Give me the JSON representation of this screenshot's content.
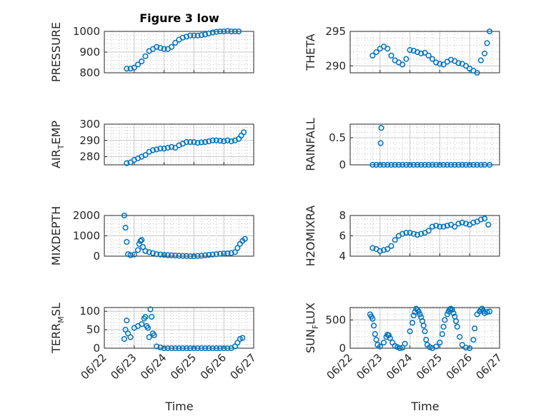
{
  "figure": {
    "title": "Figure 3 low",
    "xlabel": "Time"
  },
  "chart_data": [
    {
      "type": "scatter",
      "panel": "pressure",
      "ylabel": "PRESSURE",
      "xlim": [
        "06/22",
        "06/27"
      ],
      "ylim": [
        800,
        1000
      ],
      "yticks": [
        800,
        900,
        1000
      ],
      "marker_color": "#0072BD",
      "x": [
        "06/22 18:00",
        "06/22 21:00",
        "06/23 00:00",
        "06/23 03:00",
        "06/23 06:00",
        "06/23 09:00",
        "06/23 12:00",
        "06/23 15:00",
        "06/23 18:00",
        "06/23 21:00",
        "06/24 00:00",
        "06/24 03:00",
        "06/24 06:00",
        "06/24 09:00",
        "06/24 12:00",
        "06/24 15:00",
        "06/24 18:00",
        "06/24 21:00",
        "06/25 00:00",
        "06/25 03:00",
        "06/25 06:00",
        "06/25 09:00",
        "06/25 12:00",
        "06/25 15:00",
        "06/25 18:00",
        "06/25 21:00",
        "06/26 00:00",
        "06/26 03:00",
        "06/26 06:00",
        "06/26 09:00",
        "06/26 12:00"
      ],
      "y": [
        820,
        820,
        825,
        840,
        855,
        880,
        905,
        915,
        925,
        920,
        915,
        915,
        925,
        945,
        960,
        970,
        975,
        980,
        980,
        980,
        982,
        985,
        990,
        995,
        998,
        1000,
        1000,
        1002,
        1000,
        1000,
        1000
      ]
    },
    {
      "type": "scatter",
      "panel": "theta",
      "ylabel": "THETA",
      "xlim": [
        "06/22",
        "06/27"
      ],
      "ylim": [
        289,
        295
      ],
      "yticks": [
        290,
        295
      ],
      "marker_color": "#0072BD",
      "x": [
        "06/22 18:00",
        "06/22 21:00",
        "06/23 00:00",
        "06/23 03:00",
        "06/23 06:00",
        "06/23 09:00",
        "06/23 12:00",
        "06/23 15:00",
        "06/23 18:00",
        "06/23 21:00",
        "06/24 00:00",
        "06/24 03:00",
        "06/24 06:00",
        "06/24 09:00",
        "06/24 12:00",
        "06/24 15:00",
        "06/24 18:00",
        "06/24 21:00",
        "06/25 00:00",
        "06/25 03:00",
        "06/25 06:00",
        "06/25 09:00",
        "06/25 12:00",
        "06/25 15:00",
        "06/25 18:00",
        "06/25 21:00",
        "06/26 00:00",
        "06/26 03:00",
        "06/26 06:00",
        "06/26 09:00",
        "06/26 12:00",
        "06/26 14:00",
        "06/26 16:00"
      ],
      "y": [
        291.5,
        292.0,
        292.5,
        292.8,
        292.5,
        291.5,
        290.8,
        290.5,
        290.2,
        291.0,
        292.3,
        292.2,
        292.0,
        291.8,
        291.9,
        291.5,
        291.0,
        290.5,
        290.3,
        290.2,
        290.6,
        290.9,
        290.7,
        290.4,
        290.3,
        290.0,
        289.6,
        289.3,
        289.0,
        290.8,
        291.8,
        293.3,
        295.0
      ]
    },
    {
      "type": "scatter",
      "panel": "air_temp",
      "ylabel": "AIR_TEMP",
      "ylabel_display": {
        "base": "AIR",
        "sub": "T",
        "rest": "EMP"
      },
      "xlim": [
        "06/22",
        "06/27"
      ],
      "ylim": [
        275,
        300
      ],
      "yticks": [
        280,
        290,
        300
      ],
      "marker_color": "#0072BD",
      "x": [
        "06/22 18:00",
        "06/22 21:00",
        "06/23 00:00",
        "06/23 03:00",
        "06/23 06:00",
        "06/23 09:00",
        "06/23 12:00",
        "06/23 15:00",
        "06/23 18:00",
        "06/23 21:00",
        "06/24 00:00",
        "06/24 03:00",
        "06/24 06:00",
        "06/24 09:00",
        "06/24 12:00",
        "06/24 15:00",
        "06/24 18:00",
        "06/24 21:00",
        "06/25 00:00",
        "06/25 03:00",
        "06/25 06:00",
        "06/25 09:00",
        "06/25 12:00",
        "06/25 15:00",
        "06/25 18:00",
        "06/25 21:00",
        "06/26 00:00",
        "06/26 03:00",
        "06/26 06:00",
        "06/26 09:00",
        "06/26 12:00",
        "06/26 14:00",
        "06/26 16:00"
      ],
      "y": [
        276,
        276.5,
        278,
        279,
        280,
        281,
        283,
        284,
        284.5,
        285,
        285,
        285.5,
        286,
        285.5,
        287,
        288,
        289,
        289,
        289,
        288.5,
        288.8,
        289,
        289.5,
        290,
        290,
        289.8,
        289.5,
        290,
        289.5,
        290,
        291,
        293,
        295
      ]
    },
    {
      "type": "scatter",
      "panel": "rainfall",
      "ylabel": "RAINFALL",
      "xlim": [
        "06/22",
        "06/27"
      ],
      "ylim": [
        0,
        0.75
      ],
      "yticks": [
        0,
        0.5
      ],
      "ytick_labels": [
        "0",
        "0.5"
      ],
      "marker_color": "#0072BD",
      "x": [
        "06/22 18:00",
        "06/22 21:00",
        "06/23 00:00",
        "06/23 00:30",
        "06/23 01:00",
        "06/23 03:00",
        "06/23 06:00",
        "06/23 09:00",
        "06/23 12:00",
        "06/23 15:00",
        "06/23 18:00",
        "06/23 21:00",
        "06/24 00:00",
        "06/24 03:00",
        "06/24 06:00",
        "06/24 09:00",
        "06/24 12:00",
        "06/24 15:00",
        "06/24 18:00",
        "06/24 21:00",
        "06/25 00:00",
        "06/25 03:00",
        "06/25 06:00",
        "06/25 09:00",
        "06/25 12:00",
        "06/25 15:00",
        "06/25 18:00",
        "06/25 21:00",
        "06/26 00:00",
        "06/26 03:00",
        "06/26 06:00",
        "06/26 09:00",
        "06/26 12:00",
        "06/26 16:00"
      ],
      "y": [
        0,
        0,
        0,
        0.4,
        0.68,
        0,
        0,
        0,
        0,
        0,
        0,
        0,
        0,
        0,
        0,
        0,
        0,
        0,
        0,
        0,
        0,
        0,
        0,
        0,
        0,
        0,
        0,
        0,
        0,
        0,
        0,
        0,
        0,
        0
      ]
    },
    {
      "type": "scatter",
      "panel": "mixdepth",
      "ylabel": "MIXDEPTH",
      "xlim": [
        "06/22",
        "06/27"
      ],
      "ylim": [
        0,
        2000
      ],
      "yticks": [
        0,
        1000,
        2000
      ],
      "marker_color": "#0072BD",
      "x": [
        "06/22 16:00",
        "06/22 17:00",
        "06/22 18:00",
        "06/22 19:00",
        "06/22 21:00",
        "06/23 00:00",
        "06/23 03:00",
        "06/23 04:00",
        "06/23 05:00",
        "06/23 06:00",
        "06/23 07:00",
        "06/23 09:00",
        "06/23 12:00",
        "06/23 15:00",
        "06/23 18:00",
        "06/23 21:00",
        "06/24 00:00",
        "06/24 03:00",
        "06/24 06:00",
        "06/24 09:00",
        "06/24 12:00",
        "06/24 15:00",
        "06/24 18:00",
        "06/24 21:00",
        "06/25 00:00",
        "06/25 03:00",
        "06/25 06:00",
        "06/25 09:00",
        "06/25 12:00",
        "06/25 15:00",
        "06/25 18:00",
        "06/25 21:00",
        "06/26 00:00",
        "06/26 03:00",
        "06/26 06:00",
        "06/26 09:00",
        "06/26 11:00",
        "06/26 13:00",
        "06/26 15:00",
        "06/26 17:00"
      ],
      "y": [
        2000,
        1400,
        700,
        100,
        50,
        80,
        300,
        600,
        750,
        800,
        450,
        250,
        200,
        150,
        100,
        80,
        60,
        50,
        40,
        30,
        20,
        10,
        5,
        0,
        0,
        10,
        20,
        40,
        60,
        80,
        100,
        120,
        130,
        140,
        150,
        200,
        400,
        600,
        750,
        850
      ]
    },
    {
      "type": "scatter",
      "panel": "h2omixra",
      "ylabel": "H2OMIXRA",
      "xlim": [
        "06/22",
        "06/27"
      ],
      "ylim": [
        4,
        8
      ],
      "yticks": [
        4,
        6,
        8
      ],
      "marker_color": "#0072BD",
      "x": [
        "06/22 18:00",
        "06/22 21:00",
        "06/23 00:00",
        "06/23 03:00",
        "06/23 06:00",
        "06/23 09:00",
        "06/23 12:00",
        "06/23 15:00",
        "06/23 18:00",
        "06/23 21:00",
        "06/24 00:00",
        "06/24 03:00",
        "06/24 06:00",
        "06/24 09:00",
        "06/24 12:00",
        "06/24 15:00",
        "06/24 18:00",
        "06/24 21:00",
        "06/25 00:00",
        "06/25 03:00",
        "06/25 06:00",
        "06/25 09:00",
        "06/25 12:00",
        "06/25 15:00",
        "06/25 18:00",
        "06/25 21:00",
        "06/26 00:00",
        "06/26 03:00",
        "06/26 06:00",
        "06/26 09:00",
        "06/26 12:00",
        "06/26 15:00"
      ],
      "y": [
        4.8,
        4.7,
        4.5,
        4.6,
        4.7,
        5.0,
        5.6,
        6.0,
        6.2,
        6.3,
        6.3,
        6.2,
        6.1,
        6.2,
        6.3,
        6.5,
        6.9,
        7.0,
        6.9,
        6.9,
        7.0,
        7.1,
        6.9,
        7.2,
        7.3,
        7.2,
        7.1,
        7.3,
        7.4,
        7.6,
        7.7,
        7.1
      ]
    },
    {
      "type": "scatter",
      "panel": "terr_msl",
      "ylabel": "TERR_MSL",
      "ylabel_display": {
        "base": "TERR",
        "sub": "M",
        "rest": "SL"
      },
      "xlim": [
        "06/22",
        "06/27"
      ],
      "ylim": [
        0,
        110
      ],
      "yticks": [
        0,
        50,
        100
      ],
      "marker_color": "#0072BD",
      "x": [
        "06/22 16:00",
        "06/22 17:00",
        "06/22 18:00",
        "06/22 19:00",
        "06/22 21:00",
        "06/23 00:00",
        "06/23 03:00",
        "06/23 06:00",
        "06/23 08:00",
        "06/23 09:00",
        "06/23 10:00",
        "06/23 11:00",
        "06/23 12:00",
        "06/23 13:00",
        "06/23 14:00",
        "06/23 15:00",
        "06/23 16:00",
        "06/23 18:00",
        "06/23 21:00",
        "06/24 00:00",
        "06/24 03:00",
        "06/24 06:00",
        "06/24 09:00",
        "06/24 12:00",
        "06/24 15:00",
        "06/24 18:00",
        "06/24 21:00",
        "06/25 00:00",
        "06/25 03:00",
        "06/25 06:00",
        "06/25 09:00",
        "06/25 12:00",
        "06/25 15:00",
        "06/25 18:00",
        "06/25 21:00",
        "06/26 00:00",
        "06/26 03:00",
        "06/26 06:00",
        "06/26 09:00",
        "06/26 11:00",
        "06/26 13:00",
        "06/26 15:00"
      ],
      "y": [
        25,
        50,
        75,
        40,
        30,
        55,
        60,
        65,
        80,
        85,
        60,
        55,
        30,
        105,
        85,
        40,
        35,
        5,
        2,
        0,
        0,
        0,
        0,
        0,
        0,
        0,
        0,
        0,
        0,
        0,
        0,
        0,
        0,
        0,
        0,
        0,
        0,
        0,
        5,
        15,
        25,
        28
      ]
    },
    {
      "type": "scatter",
      "panel": "sun_flux",
      "ylabel": "SUN_FLUX",
      "ylabel_display": {
        "base": "SUN",
        "sub": "F",
        "rest": "LUX"
      },
      "xlim": [
        "06/22",
        "06/27"
      ],
      "ylim": [
        0,
        720
      ],
      "yticks": [
        0,
        500
      ],
      "marker_color": "#0072BD",
      "x": [
        "06/22 16:00",
        "06/22 17:00",
        "06/22 18:00",
        "06/22 19:00",
        "06/22 20:00",
        "06/22 21:00",
        "06/22 22:00",
        "06/23 00:00",
        "06/23 03:00",
        "06/23 05:00",
        "06/23 06:00",
        "06/23 07:00",
        "06/23 08:00",
        "06/23 10:00",
        "06/23 12:00",
        "06/23 14:00",
        "06/23 16:00",
        "06/23 18:00",
        "06/23 20:00",
        "06/24 00:00",
        "06/24 02:00",
        "06/24 03:00",
        "06/24 04:00",
        "06/24 05:00",
        "06/24 06:00",
        "06/24 07:00",
        "06/24 08:00",
        "06/24 09:00",
        "06/24 10:00",
        "06/24 11:00",
        "06/24 12:00",
        "06/24 13:00",
        "06/24 14:00",
        "06/24 16:00",
        "06/24 18:00",
        "06/24 21:00",
        "06/25 00:00",
        "06/25 02:00",
        "06/25 03:00",
        "06/25 04:00",
        "06/25 06:00",
        "06/25 07:00",
        "06/25 08:00",
        "06/25 09:00",
        "06/25 10:00",
        "06/25 11:00",
        "06/25 12:00",
        "06/25 13:00",
        "06/25 14:00",
        "06/25 16:00",
        "06/25 18:00",
        "06/25 21:00",
        "06/26 00:00",
        "06/26 03:00",
        "06/26 04:00",
        "06/26 06:00",
        "06/26 08:00",
        "06/26 09:00",
        "06/26 10:00",
        "06/26 11:00",
        "06/26 12:00",
        "06/26 14:00",
        "06/26 16:00"
      ],
      "y": [
        600,
        560,
        520,
        400,
        250,
        150,
        60,
        30,
        100,
        200,
        240,
        230,
        180,
        100,
        40,
        20,
        0,
        10,
        80,
        300,
        450,
        580,
        640,
        700,
        680,
        650,
        600,
        550,
        480,
        400,
        300,
        150,
        60,
        20,
        0,
        30,
        100,
        250,
        380,
        500,
        600,
        650,
        690,
        700,
        680,
        620,
        560,
        480,
        380,
        200,
        60,
        10,
        0,
        150,
        350,
        600,
        650,
        680,
        700,
        660,
        620,
        640,
        650
      ]
    }
  ],
  "x_ticks": [
    "06/22",
    "06/23",
    "06/24",
    "06/25",
    "06/26",
    "06/27"
  ]
}
